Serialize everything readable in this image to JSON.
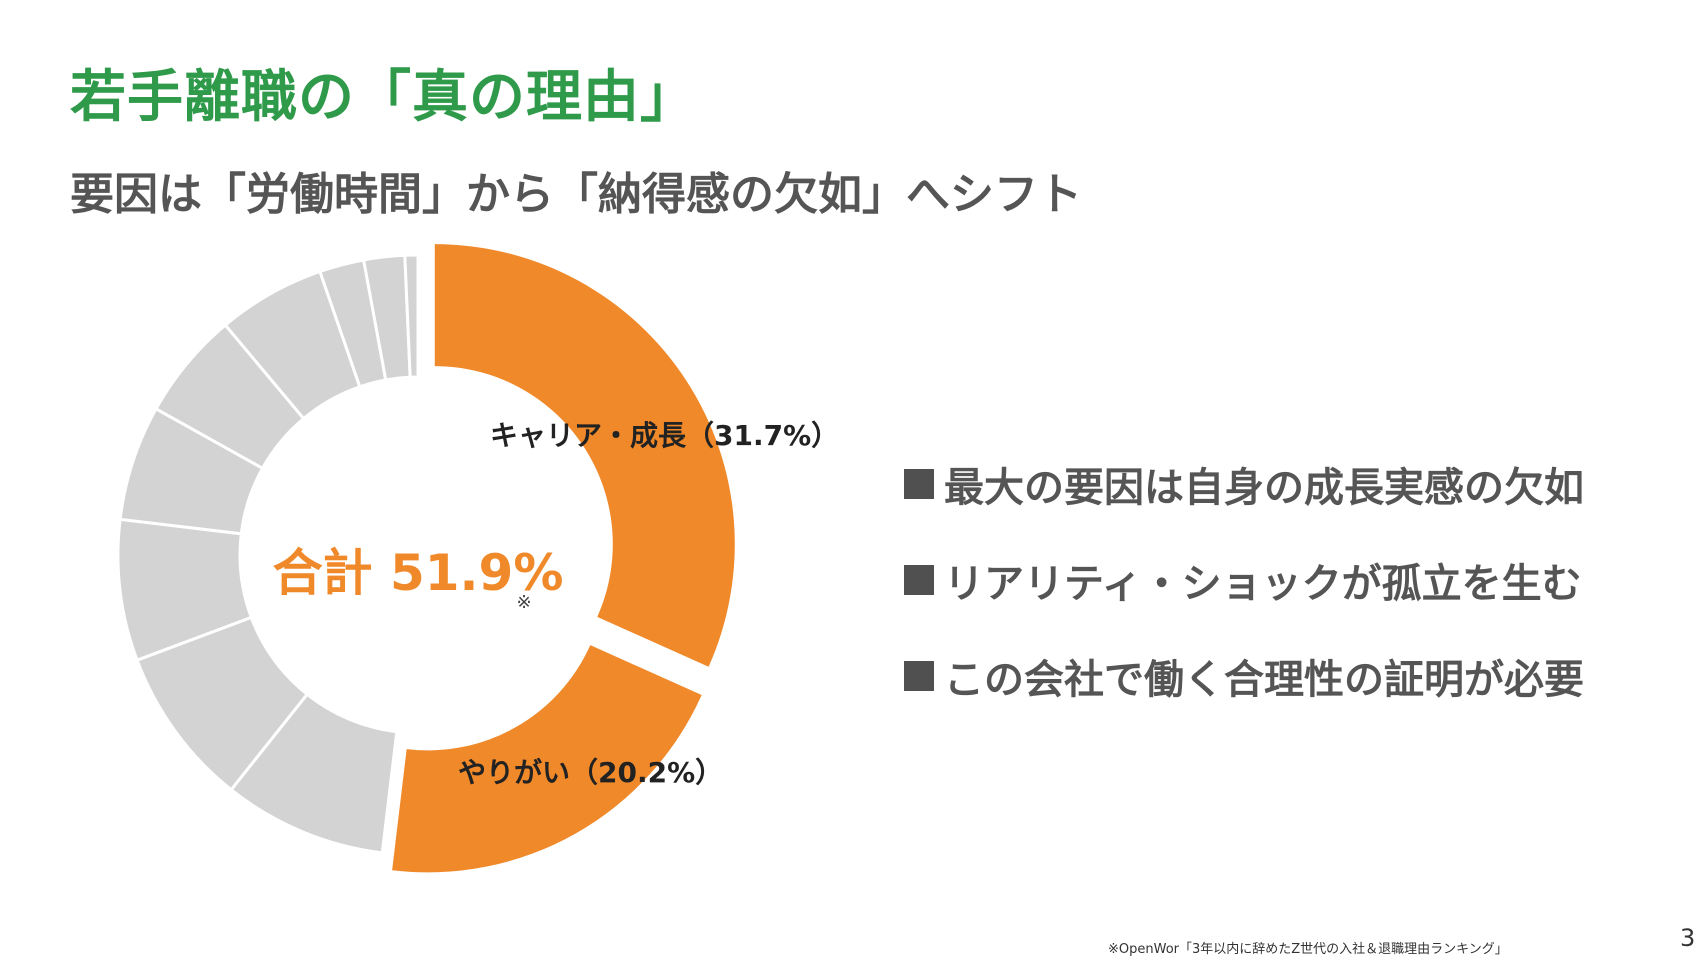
{
  "slide": {
    "title": "若手離職の「真の理由」",
    "subtitle": "要因は「労働時間」から「納得感の欠如」へシフト",
    "bullets": [
      "最大の要因は自身の成長実感の欠如",
      "リアリティ・ショックが孤立を生む",
      "この会社で働く合理性の証明が必要"
    ],
    "footnote": "※OpenWor「3年以内に辞めたZ世代の入社＆退職理由ランキング」",
    "page_number": "3"
  },
  "chart_data": {
    "type": "pie",
    "donut": true,
    "center_label": "合計 51.9%",
    "center_note": "※",
    "highlight_color": "#f0892a",
    "other_color": "#d3d3d3",
    "slices": [
      {
        "label": "キャリア・成長（31.7%）",
        "value": 31.7,
        "highlight": true,
        "exploded": true
      },
      {
        "label": "やりがい（20.2%）",
        "value": 20.2,
        "highlight": true,
        "exploded": true
      },
      {
        "label": "",
        "value": 8.8,
        "highlight": false
      },
      {
        "label": "",
        "value": 8.6,
        "highlight": false
      },
      {
        "label": "",
        "value": 7.6,
        "highlight": false
      },
      {
        "label": "",
        "value": 6.2,
        "highlight": false
      },
      {
        "label": "",
        "value": 5.8,
        "highlight": false
      },
      {
        "label": "",
        "value": 5.8,
        "highlight": false
      },
      {
        "label": "",
        "value": 2.4,
        "highlight": false
      },
      {
        "label": "",
        "value": 2.2,
        "highlight": false
      },
      {
        "label": "",
        "value": 0.7,
        "highlight": false
      }
    ]
  }
}
